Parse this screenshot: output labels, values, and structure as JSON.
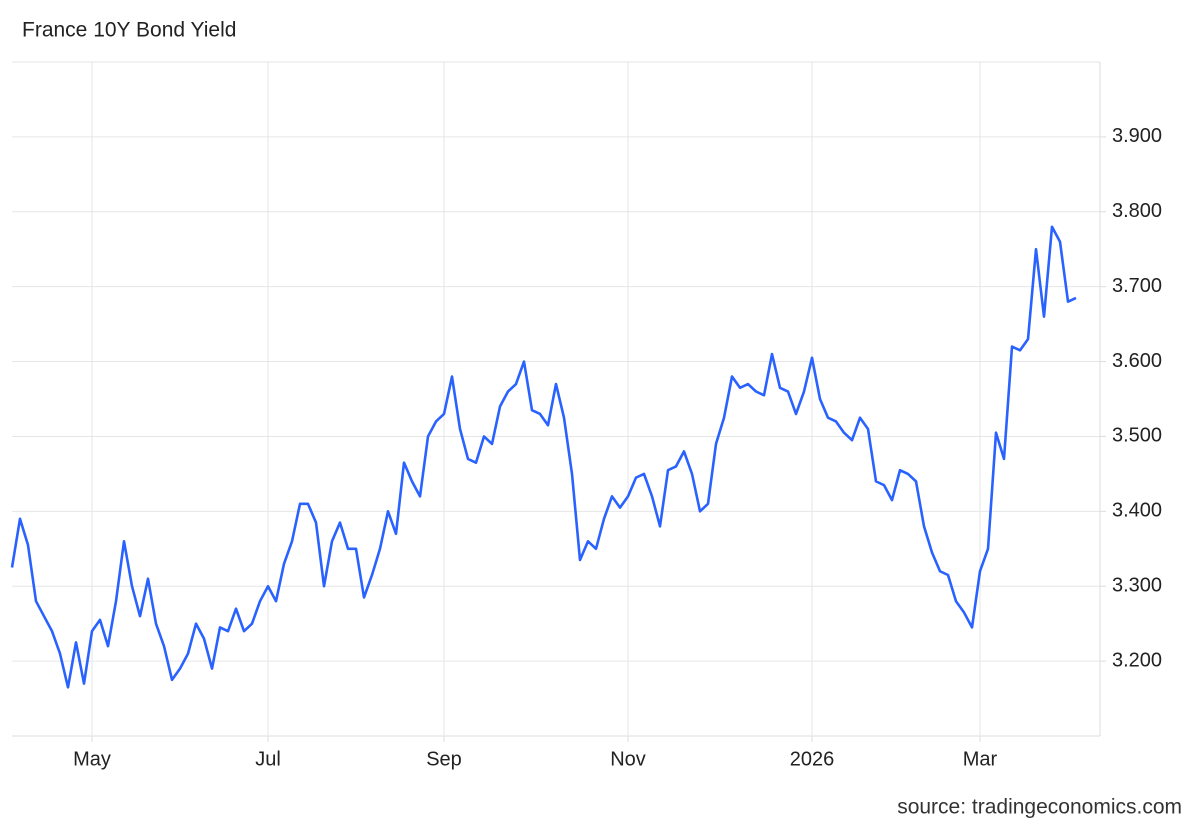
{
  "chart_data": {
    "type": "line",
    "title": "France 10Y Bond Yield",
    "source": "source: tradingeconomics.com",
    "categories": [
      null,
      null,
      null,
      null,
      null,
      null,
      null,
      null,
      null,
      null,
      "May",
      null,
      null,
      null,
      null,
      null,
      null,
      null,
      null,
      null,
      null,
      null,
      null,
      null,
      null,
      null,
      null,
      null,
      null,
      null,
      null,
      null,
      "Jul",
      null,
      null,
      null,
      null,
      null,
      null,
      null,
      null,
      null,
      null,
      null,
      null,
      null,
      null,
      null,
      null,
      null,
      null,
      null,
      null,
      null,
      "Sep",
      null,
      null,
      null,
      null,
      null,
      null,
      null,
      null,
      null,
      null,
      null,
      null,
      null,
      null,
      null,
      null,
      null,
      null,
      null,
      null,
      null,
      null,
      "Nov",
      null,
      null,
      null,
      null,
      null,
      null,
      null,
      null,
      null,
      null,
      null,
      null,
      null,
      null,
      null,
      null,
      null,
      null,
      null,
      null,
      null,
      null,
      "2026",
      null,
      null,
      null,
      null,
      null,
      null,
      null,
      null,
      null,
      null,
      null,
      null,
      null,
      null,
      null,
      null,
      null,
      null,
      null,
      null,
      "Mar",
      null,
      null,
      null,
      null,
      null,
      null,
      null,
      null,
      null,
      null,
      null,
      null
    ],
    "series": [
      {
        "name": "France 10Y",
        "color": "#2962ff",
        "values": [
          3.325,
          3.39,
          3.355,
          3.28,
          3.26,
          3.24,
          3.21,
          3.165,
          3.225,
          3.17,
          3.24,
          3.255,
          3.22,
          3.28,
          3.36,
          3.3,
          3.26,
          3.31,
          3.25,
          3.22,
          3.175,
          3.19,
          3.21,
          3.25,
          3.23,
          3.19,
          3.245,
          3.24,
          3.27,
          3.24,
          3.25,
          3.28,
          3.3,
          3.28,
          3.33,
          3.36,
          3.41,
          3.41,
          3.385,
          3.3,
          3.36,
          3.385,
          3.35,
          3.35,
          3.285,
          3.315,
          3.35,
          3.4,
          3.37,
          3.465,
          3.44,
          3.42,
          3.5,
          3.52,
          3.53,
          3.58,
          3.51,
          3.47,
          3.465,
          3.5,
          3.49,
          3.54,
          3.56,
          3.57,
          3.6,
          3.535,
          3.53,
          3.515,
          3.57,
          3.525,
          3.45,
          3.335,
          3.36,
          3.35,
          3.39,
          3.42,
          3.405,
          3.42,
          3.445,
          3.45,
          3.42,
          3.38,
          3.455,
          3.46,
          3.48,
          3.45,
          3.4,
          3.41,
          3.49,
          3.525,
          3.58,
          3.565,
          3.57,
          3.56,
          3.555,
          3.61,
          3.565,
          3.56,
          3.53,
          3.56,
          3.605,
          3.55,
          3.525,
          3.52,
          3.505,
          3.495,
          3.525,
          3.51,
          3.44,
          3.435,
          3.415,
          3.455,
          3.45,
          3.44,
          3.38,
          3.345,
          3.32,
          3.315,
          3.28,
          3.265,
          3.245,
          3.32,
          3.35,
          3.505,
          3.47,
          3.62,
          3.615,
          3.63,
          3.75,
          3.66,
          3.78,
          3.76,
          3.68,
          3.685
        ]
      }
    ],
    "ylim": [
      3.1,
      4.0
    ],
    "yticks": [
      {
        "value": 3.2,
        "label": "3.200"
      },
      {
        "value": 3.3,
        "label": "3.300"
      },
      {
        "value": 3.4,
        "label": "3.400"
      },
      {
        "value": 3.5,
        "label": "3.500"
      },
      {
        "value": 3.6,
        "label": "3.600"
      },
      {
        "value": 3.7,
        "label": "3.700"
      },
      {
        "value": 3.8,
        "label": "3.800"
      },
      {
        "value": 3.9,
        "label": "3.900"
      }
    ],
    "grid": true
  }
}
